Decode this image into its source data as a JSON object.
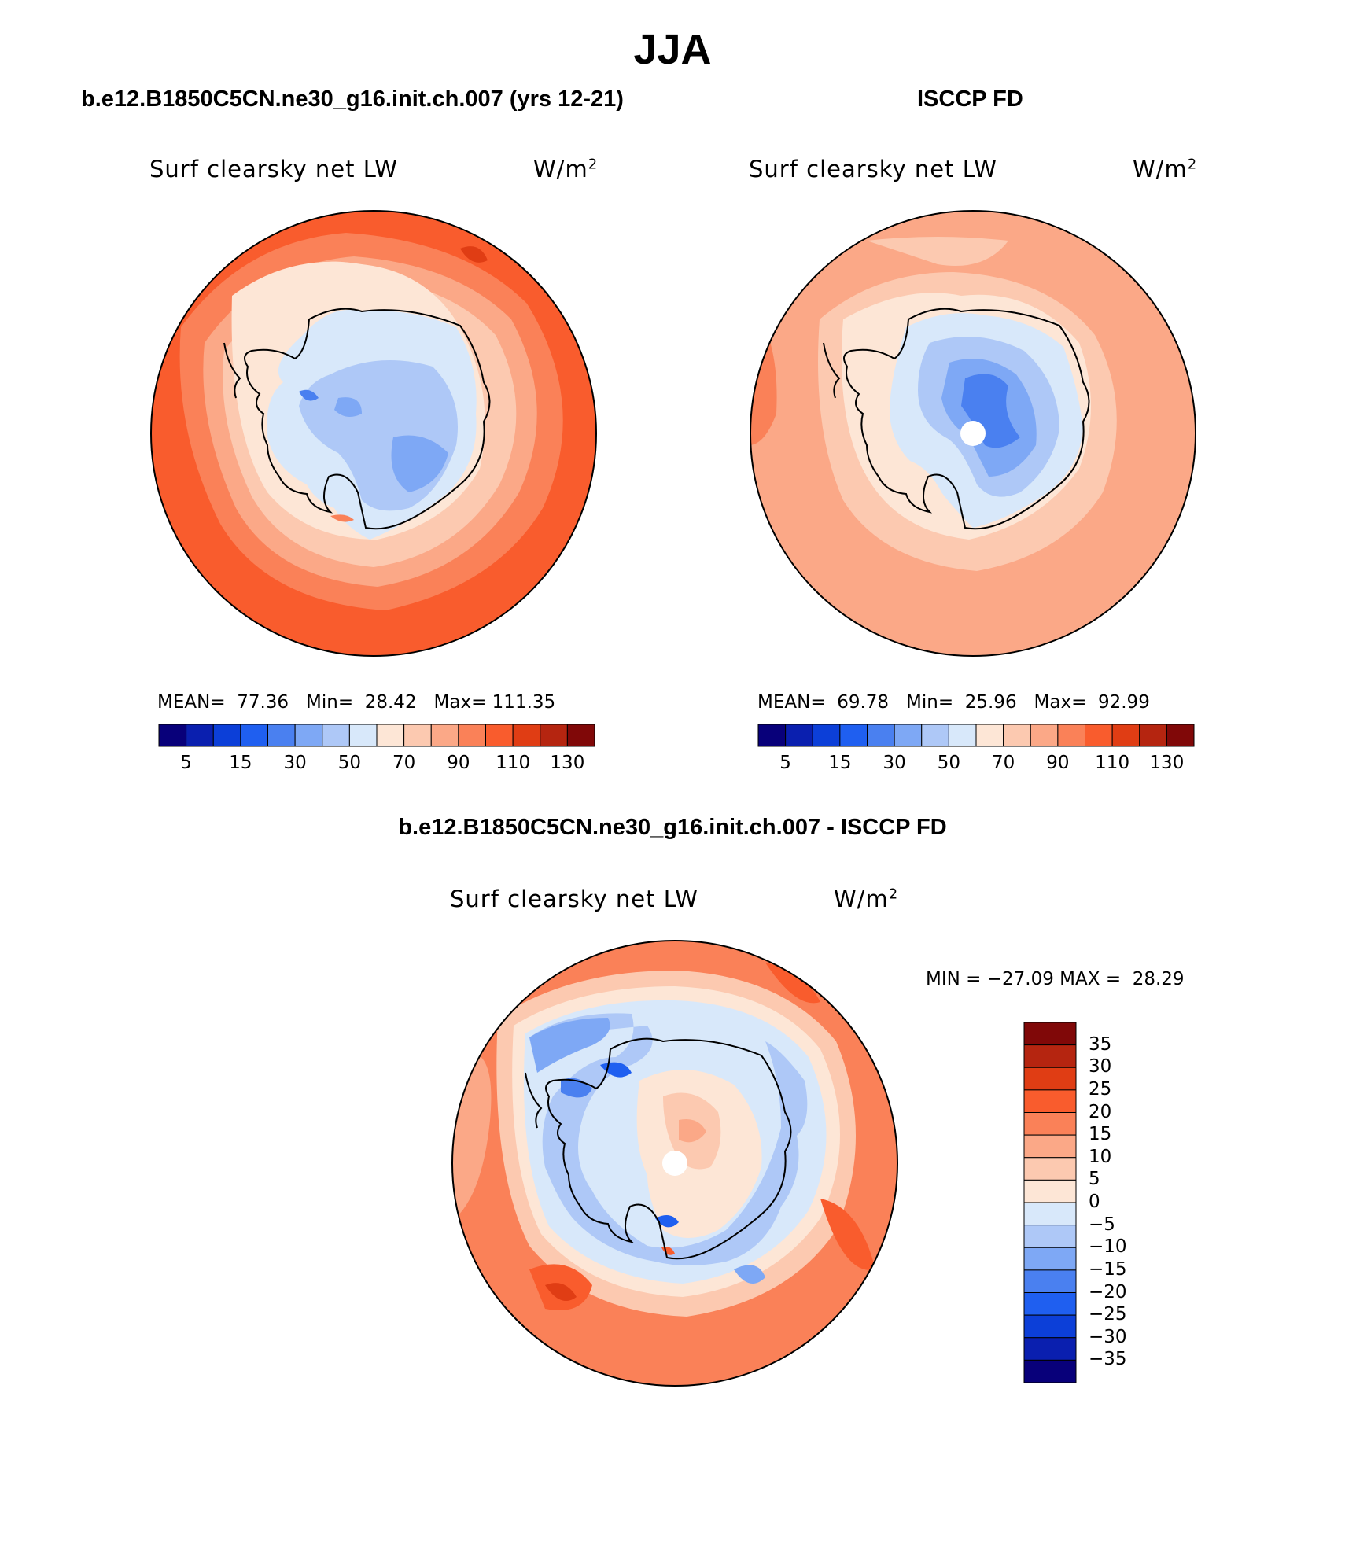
{
  "title": "JJA",
  "colors": {
    "levels15": [
      "#08007a",
      "#0a1faf",
      "#0c3fd8",
      "#1f5ff0",
      "#4a80f0",
      "#7ea8f5",
      "#aec8f7",
      "#d8e8fa",
      "#fde6d6",
      "#fcc9b0",
      "#fba887",
      "#fa8158",
      "#f95c2d",
      "#e03d14",
      "#b52510",
      "#800808"
    ],
    "levels16": [
      "#08007a",
      "#0a1faf",
      "#0c3fd8",
      "#1f5ff0",
      "#4a80f0",
      "#7ea8f5",
      "#aec8f7",
      "#d8e8fa",
      "#fde6d6",
      "#fcc9b0",
      "#fba887",
      "#fa8158",
      "#f95c2d",
      "#e03d14",
      "#b52510",
      "#800808"
    ]
  },
  "panels": [
    {
      "heading": "b.e12.B1850C5CN.ne30_g16.init.ch.007 (yrs 12-21)",
      "variable": "Surf clearsky net LW",
      "units": "W/m",
      "units_sup": "2",
      "stats": {
        "mean_label": "MEAN=",
        "mean": "77.36",
        "min_label": "Min=",
        "min": "28.42",
        "max_label": "Max=",
        "max": "111.35"
      },
      "colorbar_ticks": [
        "5",
        "15",
        "30",
        "50",
        "70",
        "90",
        "110",
        "130"
      ]
    },
    {
      "heading": "ISCCP FD",
      "variable": "Surf clearsky net LW",
      "units": "W/m",
      "units_sup": "2",
      "stats": {
        "mean_label": "MEAN=",
        "mean": "69.78",
        "min_label": "Min=",
        "min": "25.96",
        "max_label": "Max=",
        "max": "92.99"
      },
      "colorbar_ticks": [
        "5",
        "15",
        "30",
        "50",
        "70",
        "90",
        "110",
        "130"
      ]
    },
    {
      "heading": "b.e12.B1850C5CN.ne30_g16.init.ch.007 - ISCCP FD",
      "variable": "Surf clearsky net LW",
      "units": "W/m",
      "units_sup": "2",
      "stats": {
        "min_label": "MIN =",
        "min": "−27.09",
        "max_label": "MAX =",
        "max": "28.29"
      },
      "colorbar_ticks": [
        "35",
        "30",
        "25",
        "20",
        "15",
        "10",
        "5",
        "0",
        "−5",
        "−10",
        "−15",
        "−20",
        "−25",
        "−30",
        "−35"
      ]
    }
  ]
}
